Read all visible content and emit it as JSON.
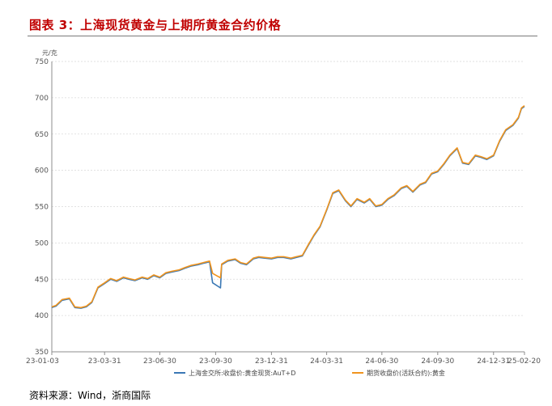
{
  "figure_title": "图表 3：上海现货黄金与上期所黄金合约价格",
  "source_text": "资料来源：Wind，浙商国际",
  "chart_data": {
    "type": "line",
    "title": "",
    "ylabel": "元/克",
    "xlabel": "",
    "ylim": [
      350,
      750
    ],
    "yticks": [
      350,
      400,
      450,
      500,
      550,
      600,
      650,
      700,
      750
    ],
    "ytick_labels": [
      "350",
      "400",
      "450",
      "500",
      "550",
      "600",
      "650",
      "700",
      "750"
    ],
    "xlim": [
      "2023-01-03",
      "2025-02-20"
    ],
    "xticks": [
      "2023-01-03",
      "2023-03-31",
      "2023-06-30",
      "2023-09-30",
      "2023-12-31",
      "2024-03-31",
      "2024-06-30",
      "2024-09-30",
      "2024-12-31",
      "2025-02-20"
    ],
    "xtick_labels": [
      "23-01-03",
      "23-03-31",
      "23-06-30",
      "23-09-30",
      "23-12-31",
      "24-03-31",
      "24-06-30",
      "24-09-30",
      "24-12-31",
      "25-02-20"
    ],
    "grid": true,
    "legend": "bottom",
    "series": [
      {
        "name": "上海金交所:收盘价:黄金现货:AuT+D",
        "color": "#3a78b5",
        "x": [
          "2023-01-03",
          "2023-01-10",
          "2023-01-20",
          "2023-02-01",
          "2023-02-10",
          "2023-02-20",
          "2023-03-01",
          "2023-03-10",
          "2023-03-20",
          "2023-03-31",
          "2023-04-10",
          "2023-04-20",
          "2023-05-01",
          "2023-05-10",
          "2023-05-20",
          "2023-06-01",
          "2023-06-10",
          "2023-06-20",
          "2023-06-30",
          "2023-07-10",
          "2023-07-20",
          "2023-08-01",
          "2023-08-10",
          "2023-08-20",
          "2023-09-01",
          "2023-09-10",
          "2023-09-20",
          "2023-09-25",
          "2023-10-08",
          "2023-10-10",
          "2023-10-20",
          "2023-11-01",
          "2023-11-10",
          "2023-11-20",
          "2023-12-01",
          "2023-12-10",
          "2023-12-20",
          "2023-12-31",
          "2024-01-10",
          "2024-01-20",
          "2024-02-01",
          "2024-02-10",
          "2024-02-20",
          "2024-03-01",
          "2024-03-10",
          "2024-03-20",
          "2024-03-31",
          "2024-04-10",
          "2024-04-20",
          "2024-05-01",
          "2024-05-10",
          "2024-05-20",
          "2024-06-01",
          "2024-06-10",
          "2024-06-20",
          "2024-06-30",
          "2024-07-10",
          "2024-07-20",
          "2024-08-01",
          "2024-08-10",
          "2024-08-20",
          "2024-09-01",
          "2024-09-10",
          "2024-09-20",
          "2024-09-30",
          "2024-10-10",
          "2024-10-20",
          "2024-11-01",
          "2024-11-10",
          "2024-11-20",
          "2024-12-01",
          "2024-12-10",
          "2024-12-20",
          "2024-12-31",
          "2025-01-10",
          "2025-01-20",
          "2025-02-01",
          "2025-02-10",
          "2025-02-15",
          "2025-02-20"
        ],
        "y": [
          411,
          413,
          421,
          423,
          411,
          410,
          412,
          418,
          438,
          444,
          450,
          447,
          452,
          450,
          448,
          452,
          450,
          455,
          452,
          458,
          460,
          462,
          465,
          468,
          470,
          472,
          474,
          445,
          438,
          470,
          475,
          477,
          472,
          470,
          478,
          480,
          479,
          478,
          480,
          480,
          478,
          480,
          482,
          497,
          510,
          522,
          545,
          568,
          572,
          558,
          550,
          560,
          555,
          560,
          550,
          552,
          560,
          565,
          575,
          578,
          570,
          580,
          583,
          595,
          598,
          608,
          620,
          630,
          610,
          608,
          620,
          618,
          615,
          620,
          640,
          655,
          662,
          672,
          685,
          688
        ],
        "values": [
          411,
          413,
          421,
          423,
          411,
          410,
          412,
          418,
          438,
          444,
          450,
          447,
          452,
          450,
          448,
          452,
          450,
          455,
          452,
          458,
          460,
          462,
          465,
          468,
          470,
          472,
          474,
          445,
          438,
          470,
          475,
          477,
          472,
          470,
          478,
          480,
          479,
          478,
          480,
          480,
          478,
          480,
          482,
          497,
          510,
          522,
          545,
          568,
          572,
          558,
          550,
          560,
          555,
          560,
          550,
          552,
          560,
          565,
          575,
          578,
          570,
          580,
          583,
          595,
          598,
          608,
          620,
          630,
          610,
          608,
          620,
          618,
          615,
          620,
          640,
          655,
          662,
          672,
          685,
          688
        ]
      },
      {
        "name": "期货收盘价(活跃合约):黄金",
        "color": "#f0941e",
        "x": [
          "2023-01-03",
          "2023-01-10",
          "2023-01-20",
          "2023-02-01",
          "2023-02-10",
          "2023-02-20",
          "2023-03-01",
          "2023-03-10",
          "2023-03-20",
          "2023-03-31",
          "2023-04-10",
          "2023-04-20",
          "2023-05-01",
          "2023-05-10",
          "2023-05-20",
          "2023-06-01",
          "2023-06-10",
          "2023-06-20",
          "2023-06-30",
          "2023-07-10",
          "2023-07-20",
          "2023-08-01",
          "2023-08-10",
          "2023-08-20",
          "2023-09-01",
          "2023-09-10",
          "2023-09-20",
          "2023-09-25",
          "2023-10-08",
          "2023-10-10",
          "2023-10-20",
          "2023-11-01",
          "2023-11-10",
          "2023-11-20",
          "2023-12-01",
          "2023-12-10",
          "2023-12-20",
          "2023-12-31",
          "2024-01-10",
          "2024-01-20",
          "2024-02-01",
          "2024-02-10",
          "2024-02-20",
          "2024-03-01",
          "2024-03-10",
          "2024-03-20",
          "2024-03-31",
          "2024-04-10",
          "2024-04-20",
          "2024-05-01",
          "2024-05-10",
          "2024-05-20",
          "2024-06-01",
          "2024-06-10",
          "2024-06-20",
          "2024-06-30",
          "2024-07-10",
          "2024-07-20",
          "2024-08-01",
          "2024-08-10",
          "2024-08-20",
          "2024-09-01",
          "2024-09-10",
          "2024-09-20",
          "2024-09-30",
          "2024-10-10",
          "2024-10-20",
          "2024-11-01",
          "2024-11-10",
          "2024-11-20",
          "2024-12-01",
          "2024-12-10",
          "2024-12-20",
          "2024-12-31",
          "2025-01-10",
          "2025-01-20",
          "2025-02-01",
          "2025-02-10",
          "2025-02-15",
          "2025-02-20"
        ],
        "y": [
          412,
          414,
          422,
          424,
          412,
          411,
          413,
          419,
          439,
          445,
          451,
          448,
          453,
          451,
          449,
          453,
          451,
          456,
          453,
          459,
          461,
          463,
          466,
          469,
          471,
          473,
          475,
          458,
          452,
          471,
          476,
          478,
          473,
          471,
          479,
          481,
          480,
          479,
          481,
          481,
          479,
          481,
          483,
          498,
          511,
          523,
          546,
          569,
          573,
          559,
          551,
          561,
          556,
          561,
          551,
          553,
          561,
          566,
          576,
          579,
          571,
          581,
          584,
          596,
          599,
          609,
          621,
          631,
          611,
          609,
          621,
          619,
          616,
          621,
          641,
          656,
          663,
          673,
          686,
          689
        ],
        "values": [
          412,
          414,
          422,
          424,
          412,
          411,
          413,
          419,
          439,
          445,
          451,
          448,
          453,
          451,
          449,
          453,
          451,
          456,
          453,
          459,
          461,
          463,
          466,
          469,
          471,
          473,
          475,
          458,
          452,
          471,
          476,
          478,
          473,
          471,
          479,
          481,
          480,
          479,
          481,
          481,
          479,
          481,
          483,
          498,
          511,
          523,
          546,
          569,
          573,
          559,
          551,
          561,
          556,
          561,
          551,
          553,
          561,
          566,
          576,
          579,
          571,
          581,
          584,
          596,
          599,
          609,
          621,
          631,
          611,
          609,
          621,
          619,
          616,
          621,
          641,
          656,
          663,
          673,
          686,
          689
        ]
      }
    ]
  }
}
